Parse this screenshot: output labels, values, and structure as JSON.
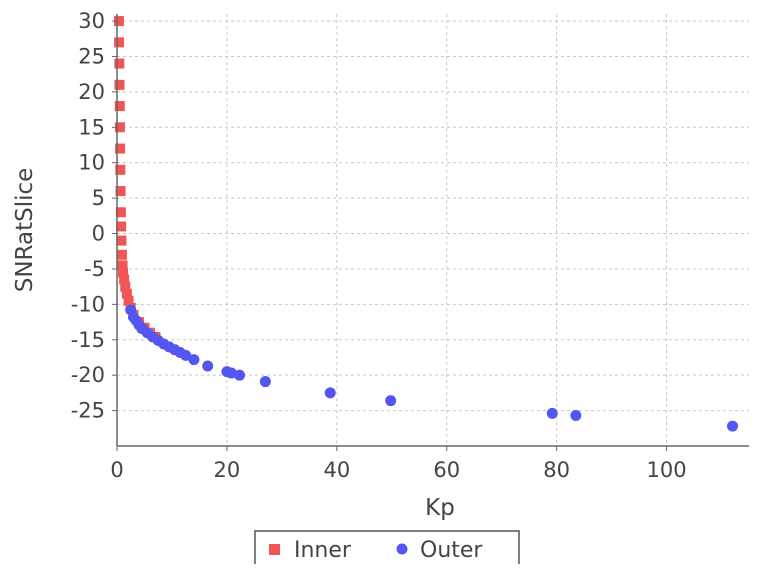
{
  "chart_data": {
    "type": "scatter",
    "title": "",
    "xlabel": "Kp",
    "ylabel": "SNRatSlice",
    "xlim": [
      0,
      115
    ],
    "ylim": [
      -30,
      31
    ],
    "x_ticks": [
      0,
      20,
      40,
      60,
      80,
      100
    ],
    "y_ticks": [
      30,
      25,
      20,
      15,
      10,
      5,
      0,
      -5,
      -10,
      -15,
      -20,
      -25
    ],
    "grid": true,
    "legend": {
      "position": "bottom",
      "entries": [
        "Inner",
        "Outer"
      ]
    },
    "series": [
      {
        "name": "Inner",
        "marker": "square",
        "color": "#f25555",
        "points": [
          [
            0.35,
            30
          ],
          [
            0.38,
            27
          ],
          [
            0.42,
            24
          ],
          [
            0.45,
            21
          ],
          [
            0.5,
            18
          ],
          [
            0.53,
            15
          ],
          [
            0.56,
            12
          ],
          [
            0.6,
            9
          ],
          [
            0.65,
            6
          ],
          [
            0.7,
            3
          ],
          [
            0.75,
            1
          ],
          [
            0.8,
            -1
          ],
          [
            0.9,
            -3
          ],
          [
            1.0,
            -4.5
          ],
          [
            1.1,
            -5.5
          ],
          [
            1.3,
            -6.5
          ],
          [
            1.5,
            -7.5
          ],
          [
            1.8,
            -8.5
          ],
          [
            2.1,
            -9.5
          ],
          [
            2.5,
            -10.5
          ],
          [
            3.0,
            -11.5
          ],
          [
            4.0,
            -12.5
          ],
          [
            5.0,
            -13.3
          ],
          [
            6.0,
            -14.0
          ],
          [
            7.0,
            -14.6
          ]
        ]
      },
      {
        "name": "Outer",
        "marker": "circle",
        "color": "#5555f2",
        "points": [
          [
            2.5,
            -10.8
          ],
          [
            3.0,
            -11.8
          ],
          [
            3.5,
            -12.3
          ],
          [
            4.0,
            -12.9
          ],
          [
            4.5,
            -13.4
          ],
          [
            5.5,
            -14.0
          ],
          [
            6.5,
            -14.6
          ],
          [
            7.5,
            -15.1
          ],
          [
            8.5,
            -15.6
          ],
          [
            9.5,
            -16.0
          ],
          [
            10.5,
            -16.4
          ],
          [
            11.5,
            -16.8
          ],
          [
            12.5,
            -17.2
          ],
          [
            14.0,
            -17.8
          ],
          [
            16.5,
            -18.7
          ],
          [
            20.0,
            -19.5
          ],
          [
            20.8,
            -19.7
          ],
          [
            22.3,
            -20.0
          ],
          [
            27.0,
            -20.9
          ],
          [
            38.8,
            -22.5
          ],
          [
            49.8,
            -23.6
          ],
          [
            79.2,
            -25.4
          ],
          [
            83.5,
            -25.7
          ],
          [
            112.0,
            -27.2
          ]
        ]
      }
    ]
  }
}
